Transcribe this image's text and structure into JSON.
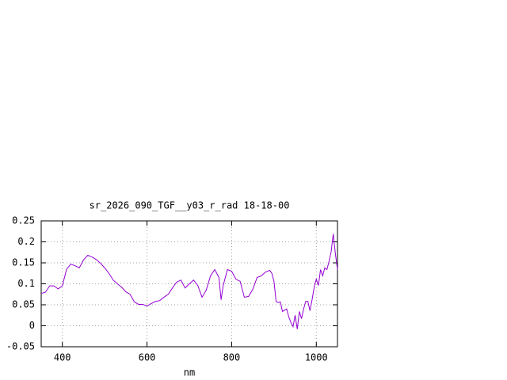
{
  "chart_data": {
    "type": "line",
    "title": "sr_2026_090_TGF__y03_r_rad 18-18-00",
    "x_label": "nm",
    "x": [
      350,
      360,
      370,
      380,
      390,
      400,
      410,
      420,
      430,
      440,
      450,
      460,
      470,
      480,
      490,
      500,
      510,
      520,
      530,
      540,
      550,
      560,
      570,
      580,
      590,
      600,
      610,
      620,
      630,
      640,
      650,
      660,
      670,
      680,
      690,
      700,
      710,
      720,
      730,
      740,
      750,
      760,
      770,
      775,
      780,
      790,
      800,
      810,
      820,
      830,
      840,
      850,
      860,
      870,
      880,
      890,
      895,
      900,
      905,
      910,
      915,
      920,
      930,
      935,
      940,
      945,
      950,
      955,
      960,
      965,
      970,
      975,
      980,
      985,
      990,
      995,
      1000,
      1005,
      1010,
      1015,
      1020,
      1025,
      1030,
      1035,
      1040,
      1045,
      1050
    ],
    "series": [
      {
        "name": "sr_2026_090_TGF__y03_r_rad",
        "color": "#9400d3",
        "values": [
          0.077,
          0.08,
          0.095,
          0.095,
          0.088,
          0.095,
          0.135,
          0.147,
          0.143,
          0.138,
          0.157,
          0.168,
          0.164,
          0.158,
          0.149,
          0.138,
          0.125,
          0.109,
          0.1,
          0.092,
          0.081,
          0.075,
          0.057,
          0.051,
          0.051,
          0.047,
          0.053,
          0.058,
          0.06,
          0.068,
          0.075,
          0.09,
          0.104,
          0.109,
          0.09,
          0.1,
          0.109,
          0.096,
          0.068,
          0.085,
          0.119,
          0.134,
          0.115,
          0.062,
          0.096,
          0.134,
          0.13,
          0.111,
          0.106,
          0.068,
          0.07,
          0.087,
          0.115,
          0.119,
          0.128,
          0.132,
          0.125,
          0.106,
          0.058,
          0.055,
          0.057,
          0.034,
          0.04,
          0.021,
          0.008,
          -0.002,
          0.025,
          -0.008,
          0.034,
          0.017,
          0.04,
          0.058,
          0.058,
          0.036,
          0.062,
          0.092,
          0.111,
          0.096,
          0.134,
          0.119,
          0.138,
          0.134,
          0.153,
          0.176,
          0.219,
          0.172,
          0.134
        ]
      }
    ],
    "xlim": [
      350,
      1050
    ],
    "xticks": [
      400,
      600,
      800,
      1000
    ],
    "ylim": [
      -0.05,
      0.25
    ],
    "yticks": [
      -0.05,
      0,
      0.05,
      0.1,
      0.15,
      0.2,
      0.25
    ],
    "grid": true
  }
}
